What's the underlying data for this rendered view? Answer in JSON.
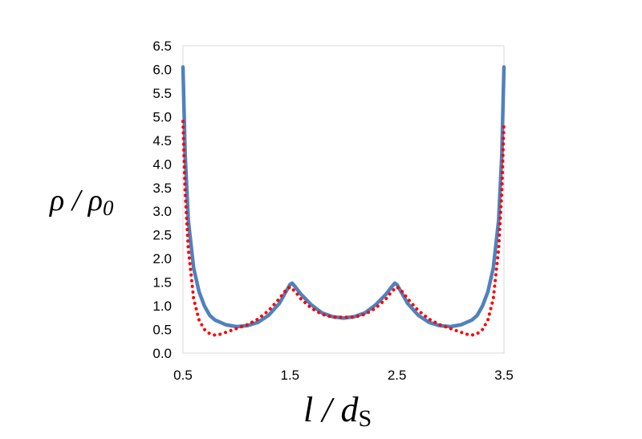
{
  "chart_data": {
    "type": "line",
    "title": "",
    "xlabel": {
      "main": "l / d",
      "sub": "S"
    },
    "ylabel": {
      "main": "ρ / ρ",
      "sub": "0"
    },
    "xlim": [
      0.5,
      3.5
    ],
    "ylim": [
      0.0,
      6.5
    ],
    "x_ticks": [
      "0.5",
      "1.5",
      "2.5",
      "3.5"
    ],
    "y_ticks": [
      "0.0",
      "0.5",
      "1.0",
      "1.5",
      "2.0",
      "2.5",
      "3.0",
      "3.5",
      "4.0",
      "4.5",
      "5.0",
      "5.5",
      "6.0",
      "6.5"
    ],
    "grid": false,
    "legend": "none",
    "series": [
      {
        "style": "solid",
        "color": "#4f81bd",
        "x": [
          0.5,
          0.52,
          0.55,
          0.6,
          0.65,
          0.7,
          0.75,
          0.8,
          0.9,
          1.0,
          1.1,
          1.2,
          1.3,
          1.4,
          1.45,
          1.5,
          1.52,
          1.55,
          1.6,
          1.7,
          1.8,
          1.9,
          2.0,
          2.1,
          2.2,
          2.3,
          2.4,
          2.45,
          2.48,
          2.5,
          2.55,
          2.6,
          2.7,
          2.8,
          2.9,
          3.0,
          3.1,
          3.2,
          3.25,
          3.3,
          3.35,
          3.4,
          3.45,
          3.48,
          3.5
        ],
        "y": [
          6.05,
          4.2,
          2.8,
          1.8,
          1.3,
          1.0,
          0.8,
          0.7,
          0.6,
          0.56,
          0.58,
          0.65,
          0.8,
          1.05,
          1.25,
          1.45,
          1.48,
          1.4,
          1.25,
          1.02,
          0.85,
          0.77,
          0.74,
          0.77,
          0.85,
          1.02,
          1.25,
          1.4,
          1.48,
          1.45,
          1.25,
          1.05,
          0.8,
          0.65,
          0.58,
          0.56,
          0.6,
          0.7,
          0.8,
          1.0,
          1.3,
          1.8,
          2.8,
          4.2,
          6.05
        ]
      },
      {
        "style": "dotted",
        "color": "#ff0000",
        "x": [
          0.5,
          0.52,
          0.55,
          0.6,
          0.65,
          0.7,
          0.75,
          0.8,
          0.85,
          0.9,
          1.0,
          1.1,
          1.2,
          1.3,
          1.4,
          1.45,
          1.5,
          1.55,
          1.6,
          1.7,
          1.8,
          1.9,
          2.0,
          2.1,
          2.2,
          2.3,
          2.4,
          2.45,
          2.5,
          2.55,
          2.6,
          2.7,
          2.8,
          2.9,
          3.0,
          3.1,
          3.15,
          3.2,
          3.25,
          3.3,
          3.35,
          3.4,
          3.45,
          3.48,
          3.5
        ],
        "y": [
          4.9,
          3.4,
          2.2,
          1.15,
          0.7,
          0.5,
          0.41,
          0.38,
          0.4,
          0.44,
          0.52,
          0.6,
          0.72,
          0.9,
          1.15,
          1.3,
          1.4,
          1.3,
          1.15,
          0.95,
          0.82,
          0.76,
          0.76,
          0.76,
          0.82,
          0.95,
          1.15,
          1.3,
          1.4,
          1.3,
          1.15,
          0.9,
          0.72,
          0.6,
          0.52,
          0.44,
          0.4,
          0.38,
          0.41,
          0.5,
          0.7,
          1.15,
          2.2,
          3.4,
          4.9
        ]
      }
    ]
  }
}
